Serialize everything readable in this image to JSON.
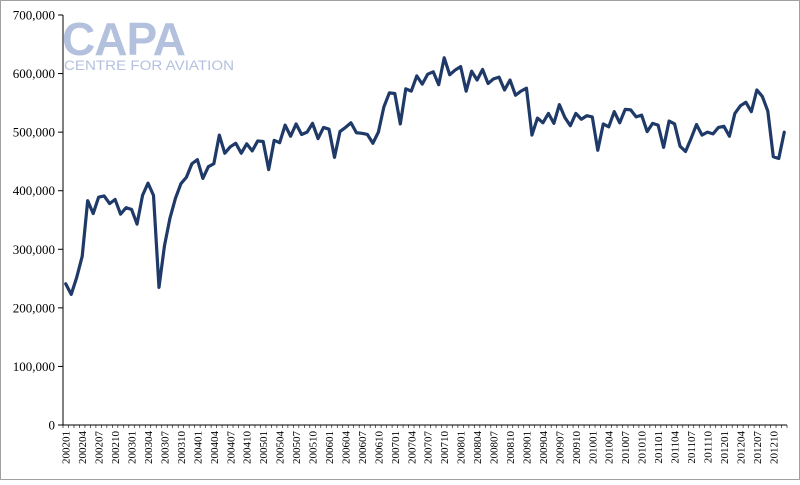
{
  "logo": {
    "name": "CAPA",
    "tagline": "CENTRE FOR AVIATION",
    "color": "#b3c1df"
  },
  "colors": {
    "series": "#1f3a68",
    "axis": "#000000",
    "frame": "#a0a0a0"
  },
  "chart_data": {
    "type": "line",
    "title": "",
    "xlabel": "",
    "ylabel": "",
    "ylim": [
      0,
      700000
    ],
    "yticks": [
      0,
      100000,
      200000,
      300000,
      400000,
      500000,
      600000,
      700000
    ],
    "ytick_labels": [
      "0",
      "100,000",
      "200,000",
      "300,000",
      "400,000",
      "500,000",
      "600,000",
      "700,000"
    ],
    "xtick_labels": [
      "200201",
      "200204",
      "200207",
      "200210",
      "200301",
      "200304",
      "200307",
      "200310",
      "200401",
      "200404",
      "200407",
      "200410",
      "200501",
      "200504",
      "200507",
      "200510",
      "200601",
      "200604",
      "200607",
      "200610",
      "200701",
      "200704",
      "200707",
      "200710",
      "200801",
      "200804",
      "200807",
      "200810",
      "200901",
      "200904",
      "200907",
      "200910",
      "201001",
      "201004",
      "201007",
      "201010",
      "201101",
      "201104",
      "201107",
      "201110",
      "201201",
      "201204",
      "201207",
      "201210"
    ],
    "grid": false,
    "legend": "none",
    "x": [
      "200201",
      "200202",
      "200203",
      "200204",
      "200205",
      "200206",
      "200207",
      "200208",
      "200209",
      "200210",
      "200211",
      "200212",
      "200301",
      "200302",
      "200303",
      "200304",
      "200305",
      "200306",
      "200307",
      "200308",
      "200309",
      "200310",
      "200311",
      "200312",
      "200401",
      "200402",
      "200403",
      "200404",
      "200405",
      "200406",
      "200407",
      "200408",
      "200409",
      "200410",
      "200411",
      "200412",
      "200501",
      "200502",
      "200503",
      "200504",
      "200505",
      "200506",
      "200507",
      "200508",
      "200509",
      "200510",
      "200511",
      "200512",
      "200601",
      "200602",
      "200603",
      "200604",
      "200605",
      "200606",
      "200607",
      "200608",
      "200609",
      "200610",
      "200611",
      "200612",
      "200701",
      "200702",
      "200703",
      "200704",
      "200705",
      "200706",
      "200707",
      "200708",
      "200709",
      "200710",
      "200711",
      "200712",
      "200801",
      "200802",
      "200803",
      "200804",
      "200805",
      "200806",
      "200807",
      "200808",
      "200809",
      "200810",
      "200811",
      "200812",
      "200901",
      "200902",
      "200903",
      "200904",
      "200905",
      "200906",
      "200907",
      "200908",
      "200909",
      "200910",
      "200911",
      "200912",
      "201001",
      "201002",
      "201003",
      "201004",
      "201005",
      "201006",
      "201007",
      "201008",
      "201009",
      "201010",
      "201011",
      "201012",
      "201101",
      "201102",
      "201103",
      "201104",
      "201105",
      "201106",
      "201107",
      "201108",
      "201109",
      "201110",
      "201111",
      "201112",
      "201201",
      "201202",
      "201203",
      "201204",
      "201205",
      "201206",
      "201207",
      "201208",
      "201209",
      "201210",
      "201211",
      "201212"
    ],
    "series": [
      {
        "values": [
          241000,
          223000,
          252000,
          288000,
          383000,
          361000,
          389000,
          391000,
          378000,
          385000,
          360000,
          371000,
          368000,
          343000,
          392000,
          413000,
          392000,
          235000,
          306000,
          353000,
          387000,
          412000,
          423000,
          446000,
          453000,
          421000,
          441000,
          446000,
          495000,
          464000,
          475000,
          481000,
          464000,
          480000,
          468000,
          485000,
          484000,
          436000,
          486000,
          482000,
          512000,
          493000,
          514000,
          496000,
          500000,
          515000,
          489000,
          508000,
          505000,
          457000,
          501000,
          508000,
          516000,
          499000,
          498000,
          496000,
          481000,
          500000,
          543000,
          567000,
          566000,
          514000,
          574000,
          570000,
          596000,
          582000,
          599000,
          603000,
          581000,
          627000,
          598000,
          606000,
          612000,
          570000,
          604000,
          589000,
          607000,
          583000,
          591000,
          594000,
          572000,
          589000,
          563000,
          570000,
          575000,
          495000,
          524000,
          516000,
          532000,
          515000,
          547000,
          525000,
          511000,
          532000,
          522000,
          528000,
          526000,
          469000,
          514000,
          509000,
          535000,
          516000,
          539000,
          538000,
          526000,
          529000,
          501000,
          515000,
          512000,
          474000,
          519000,
          514000,
          476000,
          467000,
          489000,
          513000,
          495000,
          500000,
          497000,
          508000,
          510000,
          493000,
          532000,
          545000,
          551000,
          535000,
          572000,
          561000,
          536000,
          458000,
          455000,
          500000
        ]
      }
    ]
  }
}
